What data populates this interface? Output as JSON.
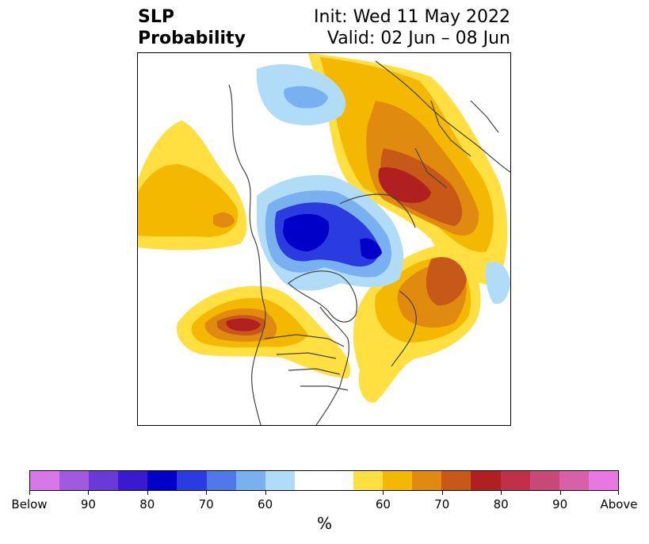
{
  "title": {
    "line1": "SLP",
    "line2": "Probability"
  },
  "info": {
    "init": "Init: Wed 11 May 2022",
    "valid": "Valid: 02 Jun – 08 Jun"
  },
  "colorbar": {
    "unit_label": "%",
    "colors": [
      "#d878e8",
      "#a05ae0",
      "#6a3ad8",
      "#3a1ad0",
      "#0000c8",
      "#2a3ce0",
      "#5078e8",
      "#78b0f0",
      "#b0dcf8",
      "#ffffff",
      "#ffffff",
      "#ffe040",
      "#f5b800",
      "#e08a10",
      "#c85818",
      "#b02020",
      "#c03048",
      "#c84878",
      "#d860a8",
      "#e878e0"
    ],
    "ticks": [
      "Below",
      "90",
      "80",
      "70",
      "60",
      "60",
      "70",
      "80",
      "90",
      "Above"
    ]
  },
  "palette": {
    "below_60": "#b0dcf8",
    "below_65": "#78b0f0",
    "below_70": "#5078e8",
    "below_75": "#2a3ce0",
    "below_80": "#0000c8",
    "above_60": "#ffe040",
    "above_65": "#f5b800",
    "above_70": "#e08a10",
    "above_75": "#c85818",
    "above_80": "#b02020"
  }
}
